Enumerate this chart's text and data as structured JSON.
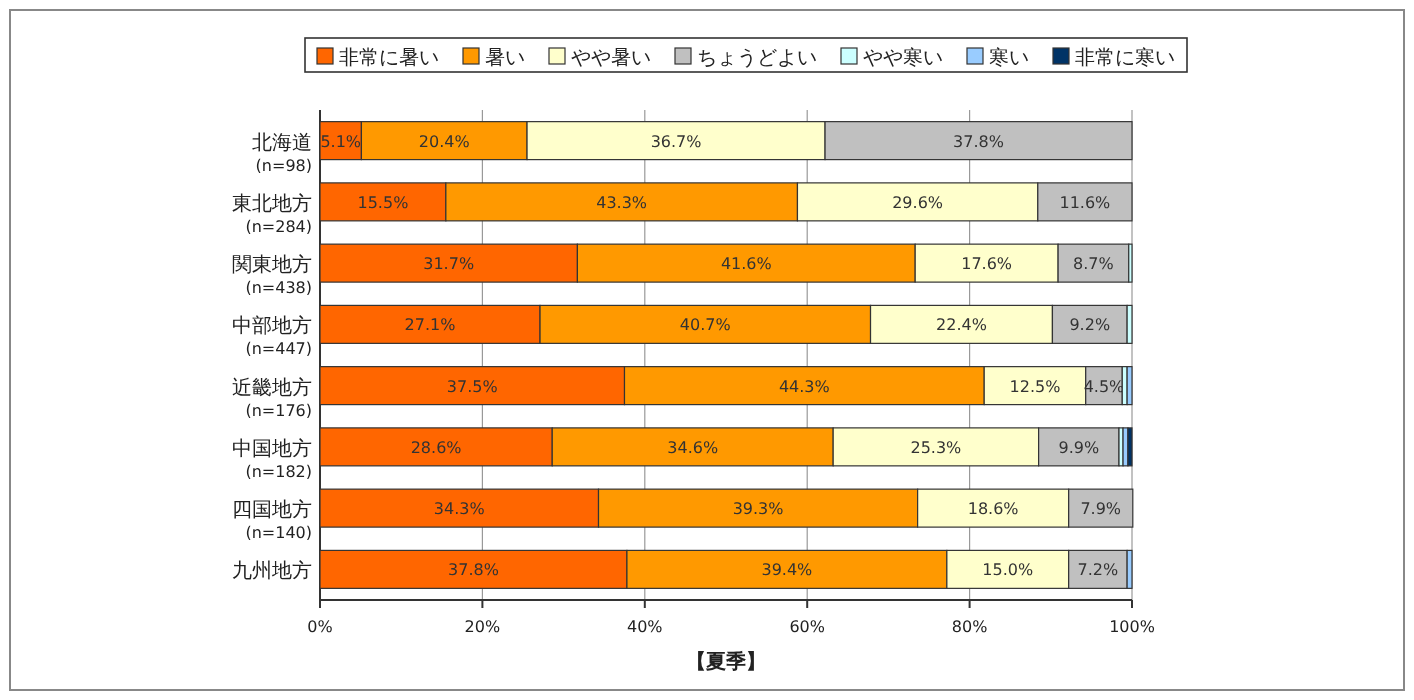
{
  "chart_data": {
    "type": "bar",
    "orientation": "horizontal",
    "stacked": true,
    "categories": [
      "北海道\n(n=98)",
      "東北地方\n(n=284)",
      "関東地方\n(n=438)",
      "中部地方\n(n=447)",
      "近畿地方\n(n=176)",
      "中国地方\n(n=182)",
      "四国地方\n(n=140)",
      "九州地方"
    ],
    "series": [
      {
        "name": "非常に暑い",
        "color": "#ff6600",
        "values": [
          5.1,
          15.5,
          31.7,
          27.1,
          37.5,
          28.6,
          34.3,
          37.8
        ],
        "value_labels": [
          "5.1%",
          "15.5%",
          "31.7%",
          "27.1%",
          "37.5%",
          "28.6%",
          "34.3%",
          "37.8%"
        ]
      },
      {
        "name": "暑い",
        "color": "#ff9900",
        "values": [
          20.4,
          43.3,
          41.6,
          40.7,
          44.3,
          34.6,
          39.3,
          39.4
        ],
        "value_labels": [
          "20.4%",
          "43.3%",
          "41.6%",
          "40.7%",
          "44.3%",
          "34.6%",
          "39.3%",
          "39.4%"
        ]
      },
      {
        "name": "やや暑い",
        "color": "#ffffcc",
        "values": [
          36.7,
          29.6,
          17.6,
          22.4,
          12.5,
          25.3,
          18.6,
          15.0
        ],
        "value_labels": [
          "36.7%",
          "29.6%",
          "17.6%",
          "22.4%",
          "12.5%",
          "25.3%",
          "18.6%",
          "15.0%"
        ]
      },
      {
        "name": "ちょうどよい",
        "color": "#c0c0c0",
        "values": [
          37.8,
          11.6,
          8.7,
          9.2,
          4.5,
          9.9,
          7.9,
          7.2
        ],
        "value_labels": [
          "37.8%",
          "11.6%",
          "8.7%",
          "9.2%",
          "4.5%",
          "9.9%",
          "7.9%",
          "7.2%"
        ]
      },
      {
        "name": "やや寒い",
        "color": "#ccffff",
        "values": [
          0,
          0,
          0.4,
          0.6,
          0.6,
          0.5,
          0,
          0
        ]
      },
      {
        "name": "寒い",
        "color": "#99ccff",
        "values": [
          0,
          0,
          0,
          0,
          0.6,
          0.6,
          0,
          0.6
        ]
      },
      {
        "name": "非常に寒い",
        "color": "#003366",
        "values": [
          0,
          0,
          0,
          0,
          0,
          0.5,
          0,
          0
        ]
      }
    ],
    "xlim": [
      0,
      100
    ],
    "xticks": [
      {
        "value": 0,
        "label": "0%"
      },
      {
        "value": 20,
        "label": "20%"
      },
      {
        "value": 40,
        "label": "40%"
      },
      {
        "value": 60,
        "label": "60%"
      },
      {
        "value": 80,
        "label": "80%"
      },
      {
        "value": 100,
        "label": "100%"
      }
    ],
    "xlabel": "【夏季】",
    "grid": "x",
    "legend": "top"
  }
}
